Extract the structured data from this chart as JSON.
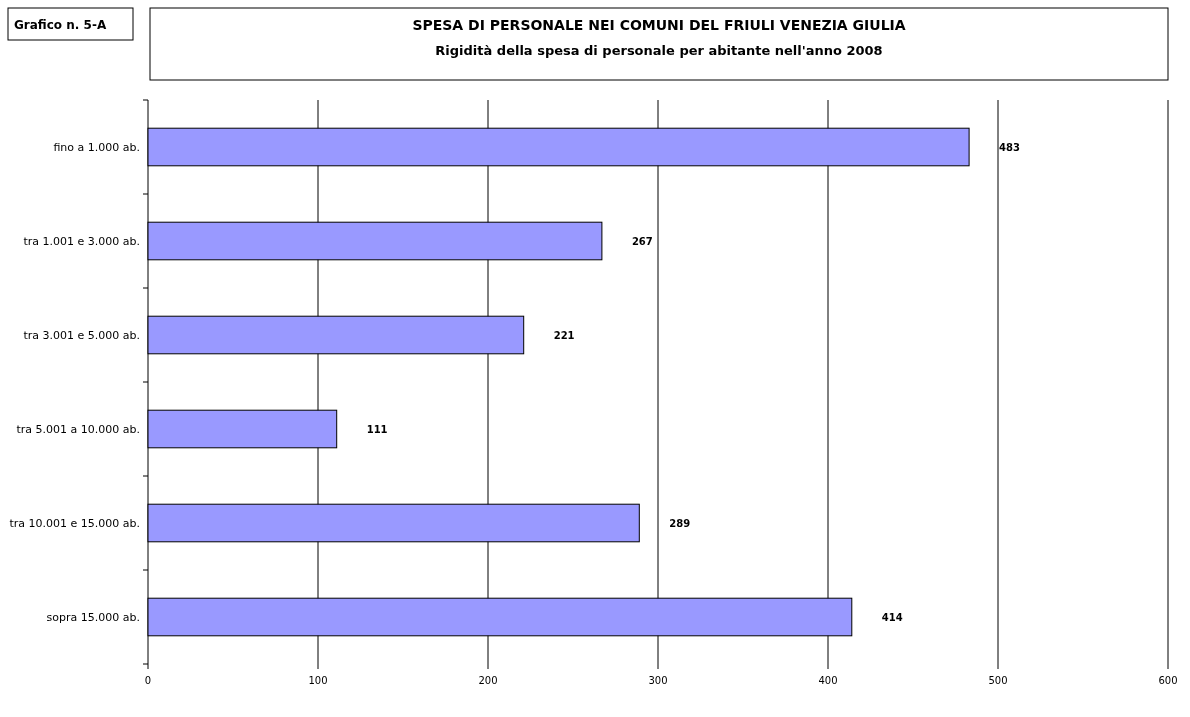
{
  "chart_data": {
    "type": "bar",
    "orientation": "horizontal",
    "title": "SPESA DI PERSONALE NEI COMUNI DEL FRIULI VENEZIA GIULIA",
    "subtitle": "Rigidità della spesa di personale per abitante nell'anno 2008",
    "annotations": [
      "Grafico n. 5-A"
    ],
    "categories": [
      "fino a 1.000 ab.",
      "tra 1.001 e 3.000 ab.",
      "tra 3.001 e 5.000 ab.",
      "tra 5.001 a 10.000 ab.",
      "tra 10.001 e 15.000 ab.",
      "sopra 15.000 ab."
    ],
    "values": [
      483,
      267,
      221,
      111,
      289,
      414
    ],
    "color": "#9999ff",
    "data_labels": true,
    "xlim": [
      0,
      600
    ],
    "xticks": [
      0,
      100,
      200,
      300,
      400,
      500,
      600
    ],
    "grid": "x"
  }
}
